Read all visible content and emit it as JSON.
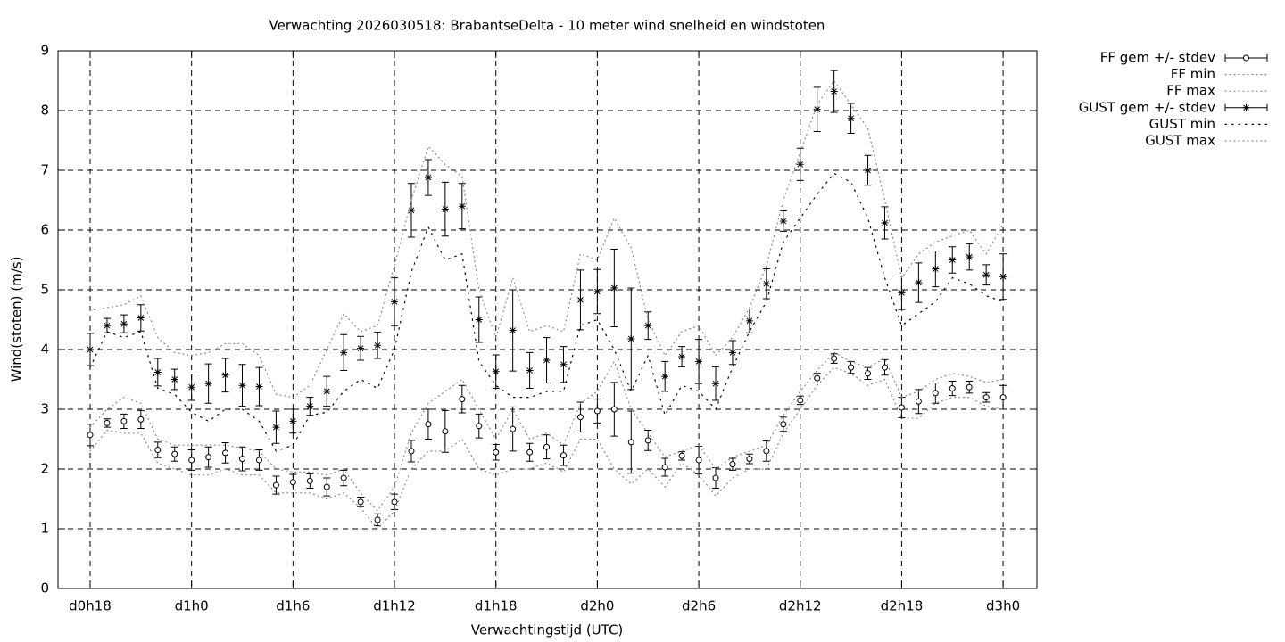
{
  "chart_data": {
    "type": "errorbar-line",
    "title": "Verwachting 2026030518: BrabantseDelta - 10 meter wind snelheid en windstoten",
    "x_label": "Verwachtingstijd (UTC)",
    "y_label": "Wind(stoten) (m/s)",
    "xlim": [
      16.1,
      74.0
    ],
    "ylim": [
      0,
      9
    ],
    "xticks": [
      {
        "value": 18,
        "label": "d0h18"
      },
      {
        "value": 24,
        "label": "d1h0"
      },
      {
        "value": 30,
        "label": "d1h6"
      },
      {
        "value": 36,
        "label": "d1h12"
      },
      {
        "value": 42,
        "label": "d1h18"
      },
      {
        "value": 48,
        "label": "d2h0"
      },
      {
        "value": 54,
        "label": "d2h6"
      },
      {
        "value": 60,
        "label": "d2h12"
      },
      {
        "value": 66,
        "label": "d2h18"
      },
      {
        "value": 72,
        "label": "d3h0"
      }
    ],
    "yticks": [
      0,
      1,
      2,
      3,
      4,
      5,
      6,
      7,
      8,
      9
    ],
    "grid": true,
    "legend": "outside-top-right",
    "x": [
      18,
      19,
      20,
      21,
      22,
      23,
      24,
      25,
      26,
      27,
      28,
      29,
      30,
      31,
      32,
      33,
      34,
      35,
      36,
      37,
      38,
      39,
      40,
      41,
      42,
      43,
      44,
      45,
      46,
      47,
      48,
      49,
      50,
      51,
      52,
      53,
      54,
      55,
      56,
      57,
      58,
      59,
      60,
      61,
      62,
      63,
      64,
      65,
      66,
      67,
      68,
      69,
      70,
      71,
      72
    ],
    "series": [
      {
        "name": "FF gem +/- stdev",
        "style": "errorbars",
        "marker": "circle",
        "color": "#000000",
        "values": [
          2.57,
          2.77,
          2.8,
          2.83,
          2.32,
          2.25,
          2.15,
          2.2,
          2.27,
          2.17,
          2.15,
          1.73,
          1.78,
          1.8,
          1.7,
          1.85,
          1.45,
          1.15,
          1.45,
          2.3,
          2.75,
          2.63,
          3.17,
          2.72,
          2.28,
          2.67,
          2.28,
          2.37,
          2.23,
          2.87,
          2.97,
          3.0,
          2.45,
          2.48,
          2.03,
          2.22,
          2.15,
          1.85,
          2.08,
          2.17,
          2.3,
          2.75,
          3.15,
          3.52,
          3.85,
          3.7,
          3.6,
          3.7,
          3.03,
          3.13,
          3.27,
          3.35,
          3.37,
          3.2,
          3.2
        ],
        "errors": [
          0.18,
          0.07,
          0.12,
          0.15,
          0.13,
          0.12,
          0.17,
          0.17,
          0.17,
          0.2,
          0.17,
          0.15,
          0.13,
          0.12,
          0.15,
          0.13,
          0.08,
          0.1,
          0.13,
          0.18,
          0.25,
          0.35,
          0.23,
          0.2,
          0.13,
          0.37,
          0.15,
          0.2,
          0.17,
          0.25,
          0.2,
          0.45,
          0.52,
          0.17,
          0.15,
          0.07,
          0.23,
          0.17,
          0.1,
          0.08,
          0.17,
          0.12,
          0.07,
          0.08,
          0.08,
          0.1,
          0.1,
          0.13,
          0.17,
          0.2,
          0.17,
          0.12,
          0.1,
          0.08,
          0.2
        ]
      },
      {
        "name": "FF min",
        "style": "line",
        "dash": "1 4",
        "color": "#8a8a8a",
        "values": [
          2.3,
          2.65,
          2.6,
          2.6,
          2.1,
          2.0,
          1.9,
          1.9,
          2.0,
          1.9,
          1.9,
          1.6,
          1.6,
          1.6,
          1.5,
          1.6,
          1.35,
          1.0,
          1.3,
          2.0,
          2.3,
          2.3,
          2.5,
          2.0,
          1.9,
          2.0,
          2.0,
          2.1,
          1.95,
          2.5,
          2.5,
          2.0,
          1.75,
          2.0,
          1.7,
          2.1,
          1.9,
          1.55,
          1.85,
          2.0,
          2.0,
          2.6,
          3.0,
          3.4,
          3.7,
          3.6,
          3.4,
          3.5,
          2.85,
          2.85,
          3.1,
          3.2,
          3.2,
          3.05,
          3.0
        ]
      },
      {
        "name": "FF max",
        "style": "line",
        "dash": "1 4",
        "color": "#8a8a8a",
        "values": [
          2.7,
          3.0,
          3.2,
          3.1,
          2.5,
          2.4,
          2.4,
          2.4,
          2.4,
          2.35,
          2.3,
          2.0,
          1.95,
          1.95,
          1.9,
          2.0,
          1.6,
          1.3,
          1.7,
          2.6,
          3.1,
          3.3,
          3.5,
          3.0,
          2.5,
          3.0,
          2.5,
          2.6,
          2.4,
          3.1,
          3.3,
          3.8,
          3.0,
          2.6,
          2.2,
          2.3,
          2.4,
          2.0,
          2.2,
          2.3,
          2.4,
          2.9,
          3.3,
          3.65,
          3.95,
          3.8,
          3.7,
          3.85,
          3.2,
          3.3,
          3.5,
          3.6,
          3.55,
          3.45,
          3.5
        ]
      },
      {
        "name": "GUST gem +/- stdev",
        "style": "errorbars",
        "marker": "star",
        "color": "#000000",
        "values": [
          4.0,
          4.4,
          4.43,
          4.53,
          3.62,
          3.5,
          3.37,
          3.43,
          3.57,
          3.4,
          3.38,
          2.7,
          2.8,
          3.05,
          3.3,
          3.95,
          4.02,
          4.07,
          4.8,
          6.33,
          6.88,
          6.35,
          6.4,
          4.5,
          3.63,
          4.32,
          3.65,
          3.82,
          3.75,
          4.83,
          4.97,
          5.03,
          4.18,
          4.4,
          3.55,
          3.88,
          3.8,
          3.43,
          3.95,
          4.48,
          5.1,
          6.15,
          7.1,
          8.02,
          8.32,
          7.87,
          7.0,
          6.12,
          4.95,
          5.12,
          5.35,
          5.5,
          5.55,
          5.25,
          5.22
        ],
        "errors": [
          0.27,
          0.12,
          0.15,
          0.22,
          0.23,
          0.17,
          0.22,
          0.33,
          0.28,
          0.35,
          0.32,
          0.27,
          0.2,
          0.15,
          0.25,
          0.3,
          0.2,
          0.22,
          0.4,
          0.45,
          0.3,
          0.45,
          0.38,
          0.38,
          0.28,
          0.68,
          0.3,
          0.38,
          0.3,
          0.5,
          0.37,
          0.65,
          0.85,
          0.23,
          0.25,
          0.17,
          0.37,
          0.28,
          0.2,
          0.2,
          0.25,
          0.17,
          0.27,
          0.37,
          0.35,
          0.25,
          0.25,
          0.27,
          0.28,
          0.33,
          0.3,
          0.22,
          0.22,
          0.17,
          0.38
        ]
      },
      {
        "name": "GUST min",
        "style": "line",
        "dash": "1.5 6",
        "color": "#000000",
        "values": [
          3.7,
          4.3,
          4.2,
          4.3,
          3.35,
          3.25,
          2.95,
          2.8,
          3.0,
          3.0,
          2.8,
          2.3,
          2.4,
          2.9,
          2.95,
          3.3,
          3.5,
          3.35,
          4.0,
          5.3,
          6.05,
          5.5,
          5.6,
          3.8,
          3.4,
          3.2,
          3.2,
          3.3,
          3.3,
          4.4,
          4.5,
          4.0,
          3.3,
          3.9,
          2.9,
          3.4,
          3.3,
          3.0,
          3.7,
          4.3,
          4.8,
          5.8,
          6.2,
          6.6,
          6.95,
          6.8,
          6.2,
          5.2,
          4.4,
          4.6,
          4.8,
          5.2,
          5.1,
          4.9,
          4.8
        ]
      },
      {
        "name": "GUST max",
        "style": "line",
        "dash": "1 4",
        "color": "#8a8a8a",
        "values": [
          4.65,
          4.7,
          4.75,
          4.9,
          4.2,
          3.95,
          3.9,
          3.95,
          4.1,
          4.1,
          3.9,
          3.25,
          3.2,
          3.4,
          4.0,
          4.6,
          4.3,
          4.4,
          5.4,
          6.5,
          7.4,
          7.1,
          6.9,
          5.0,
          4.2,
          5.2,
          4.3,
          4.4,
          4.3,
          5.6,
          5.5,
          6.2,
          5.7,
          4.5,
          3.9,
          4.3,
          4.4,
          3.9,
          4.2,
          4.7,
          5.4,
          6.5,
          7.3,
          8.1,
          8.5,
          8.1,
          7.7,
          6.5,
          5.2,
          5.6,
          5.8,
          5.9,
          6.0,
          5.6,
          6.1
        ]
      }
    ]
  }
}
